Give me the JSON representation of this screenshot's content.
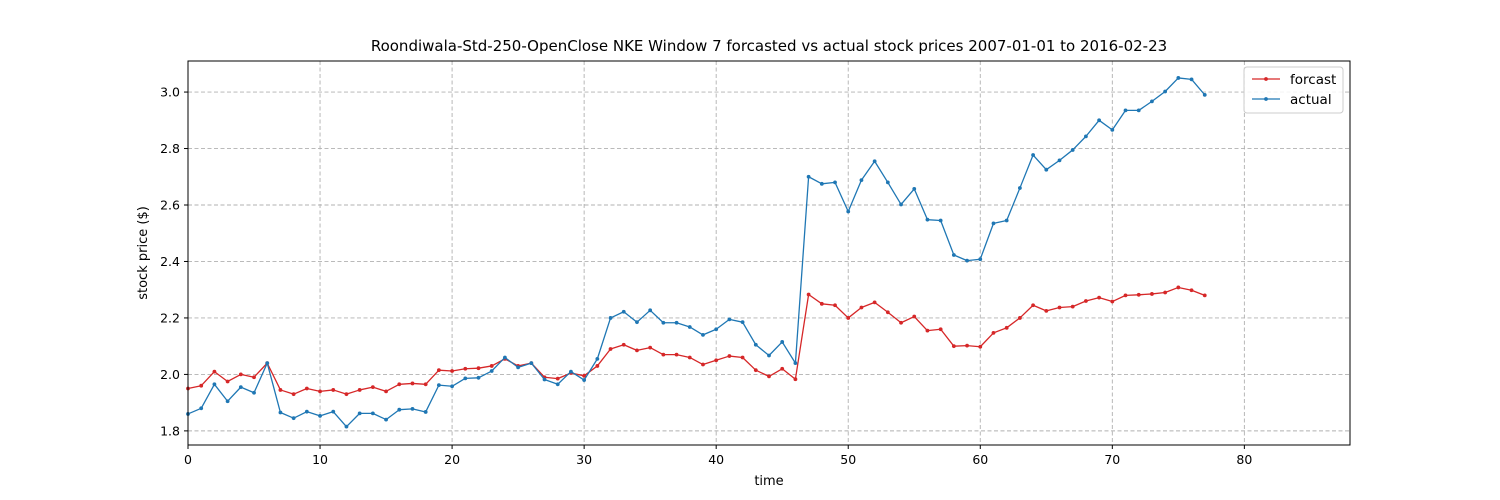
{
  "chart_data": {
    "type": "line",
    "title": "Roondiwala-Std-250-OpenClose NKE Window 7 forcasted vs actual stock prices 2007-01-01 to 2016-02-23",
    "xlabel": "time",
    "ylabel": "stock price ($)",
    "xlim": [
      0,
      88
    ],
    "ylim": [
      1.75,
      3.11
    ],
    "xticks": [
      0,
      10,
      20,
      30,
      40,
      50,
      60,
      70,
      80
    ],
    "yticks": [
      1.8,
      2.0,
      2.2,
      2.4,
      2.6,
      2.8,
      3.0
    ],
    "xtick_labels": [
      "0",
      "10",
      "20",
      "30",
      "40",
      "50",
      "60",
      "70",
      "80"
    ],
    "ytick_labels": [
      "1.8",
      "2.0",
      "2.2",
      "2.4",
      "2.6",
      "2.8",
      "3.0"
    ],
    "grid": true,
    "legend_position": "top-right",
    "series": [
      {
        "name": "forcast",
        "color": "#d62728",
        "values": [
          1.95,
          1.96,
          2.01,
          1.975,
          2.0,
          1.99,
          2.04,
          1.945,
          1.93,
          1.95,
          1.94,
          1.945,
          1.93,
          1.945,
          1.955,
          1.94,
          1.965,
          1.968,
          1.965,
          2.015,
          2.012,
          2.02,
          2.022,
          2.03,
          2.055,
          2.03,
          2.04,
          1.99,
          1.985,
          2.005,
          1.995,
          2.03,
          2.09,
          2.105,
          2.085,
          2.095,
          2.07,
          2.07,
          2.06,
          2.035,
          2.05,
          2.065,
          2.06,
          2.015,
          1.993,
          2.02,
          1.983,
          2.283,
          2.25,
          2.245,
          2.2,
          2.237,
          2.255,
          2.22,
          2.183,
          2.205,
          2.155,
          2.16,
          2.1,
          2.102,
          2.098,
          2.147,
          2.165,
          2.2,
          2.245,
          2.225,
          2.237,
          2.24,
          2.26,
          2.272,
          2.258,
          2.28,
          2.282,
          2.285,
          2.29,
          2.308,
          2.298,
          2.28
        ]
      },
      {
        "name": "actual",
        "color": "#1f77b4",
        "values": [
          1.86,
          1.88,
          1.965,
          1.905,
          1.955,
          1.935,
          2.04,
          1.865,
          1.845,
          1.868,
          1.853,
          1.868,
          1.815,
          1.862,
          1.862,
          1.84,
          1.875,
          1.878,
          1.867,
          1.962,
          1.958,
          1.986,
          1.988,
          2.012,
          2.06,
          2.025,
          2.04,
          1.982,
          1.965,
          2.01,
          1.98,
          2.055,
          2.2,
          2.222,
          2.185,
          2.227,
          2.183,
          2.183,
          2.168,
          2.14,
          2.16,
          2.195,
          2.185,
          2.105,
          2.067,
          2.115,
          2.04,
          2.7,
          2.675,
          2.68,
          2.577,
          2.688,
          2.755,
          2.68,
          2.602,
          2.657,
          2.548,
          2.545,
          2.423,
          2.403,
          2.408,
          2.535,
          2.545,
          2.66,
          2.777,
          2.725,
          2.758,
          2.795,
          2.843,
          2.9,
          2.866,
          2.935,
          2.935,
          2.967,
          3.002,
          3.05,
          3.045,
          2.99
        ]
      }
    ]
  }
}
